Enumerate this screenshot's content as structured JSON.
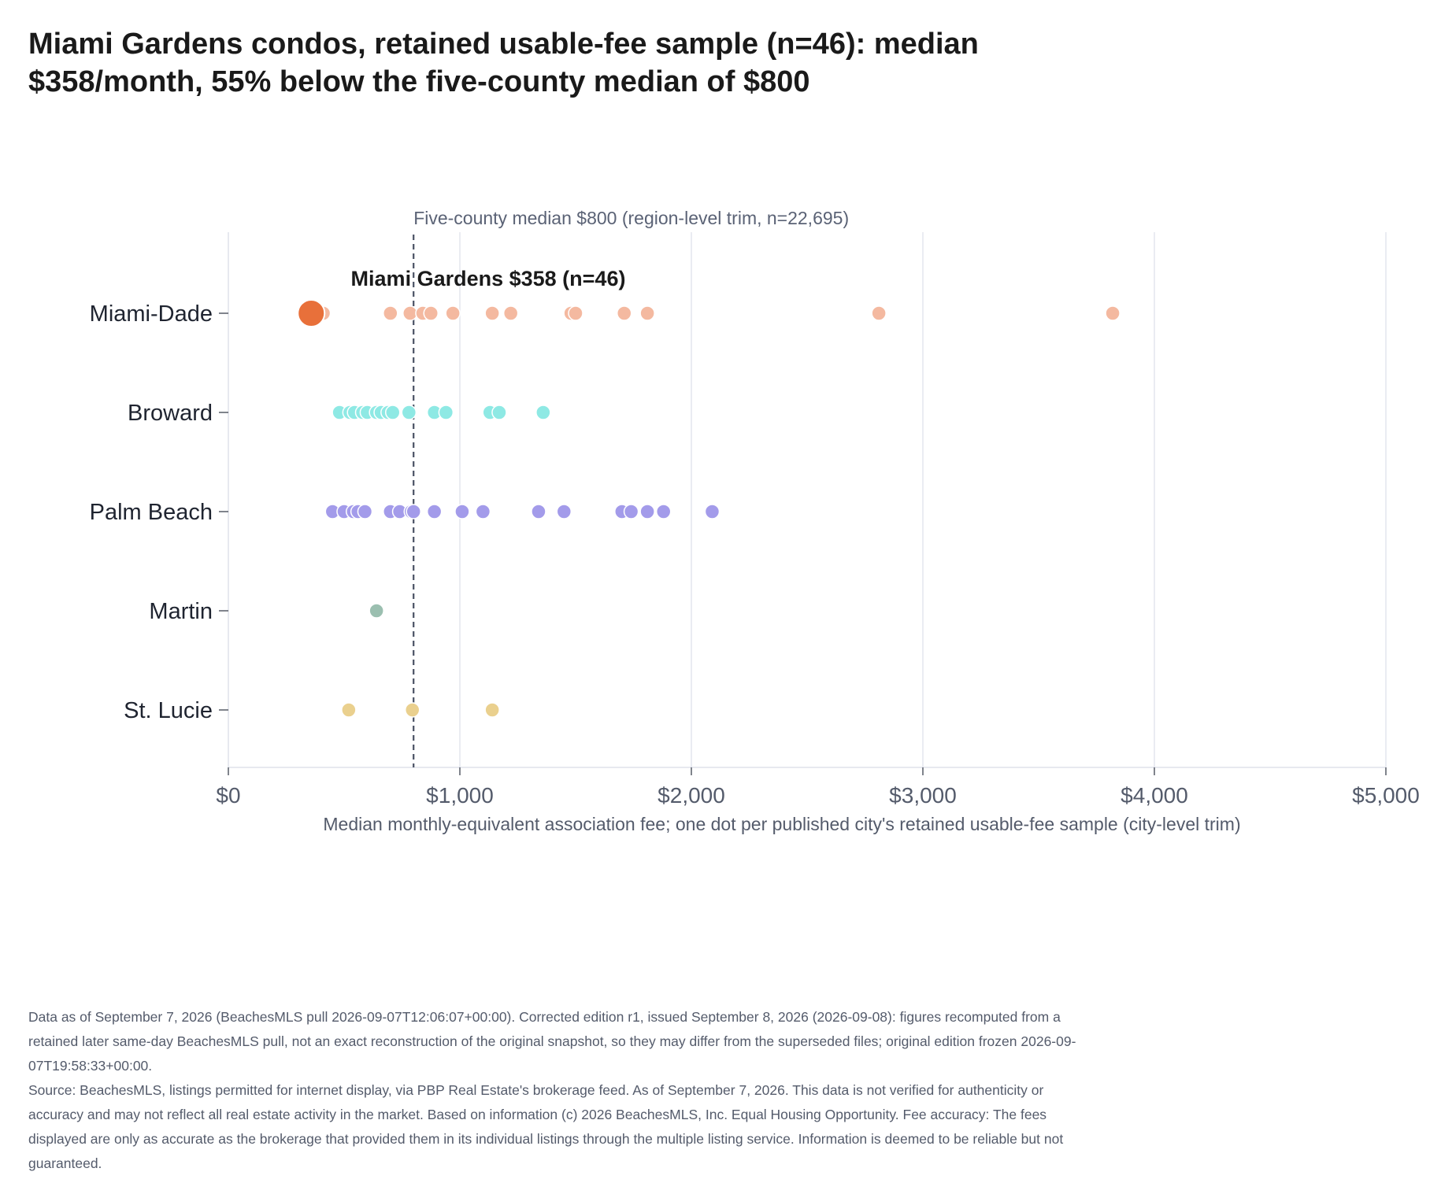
{
  "title": "Miami Gardens condos, retained usable-fee sample (n=46): median $358/month, 55% below the five-county median of $800",
  "footnote": {
    "edition": "Data as of September 7, 2026 (BeachesMLS pull 2026-09-07T12:06:07+00:00). Corrected edition r1, issued September 8, 2026 (2026-09-08): figures recomputed from a retained later same-day BeachesMLS pull, not an exact reconstruction of the original snapshot, so they may differ from the superseded files; original edition frozen 2026-09-07T19:58:33+00:00.",
    "source": "Source: BeachesMLS, listings permitted for internet display, via PBP Real Estate's brokerage feed. As of September 7, 2026. This data is not verified for authenticity or accuracy and may not reflect all real estate activity in the market. Based on information (c) 2026 BeachesMLS, Inc. Equal Housing Opportunity. Fee accuracy: The fees displayed are only as accurate as the brokerage that provided them in its individual listings through the multiple listing service. Information is deemed to be reliable but not guaranteed."
  },
  "chart_data": {
    "type": "scatter",
    "xlabel": "Median monthly-equivalent association fee; one dot per published city's retained usable-fee sample (city-level trim)",
    "xlim": [
      0,
      5000
    ],
    "xticks": [
      {
        "value": 0,
        "label": "$0"
      },
      {
        "value": 1000,
        "label": "$1,000"
      },
      {
        "value": 2000,
        "label": "$2,000"
      },
      {
        "value": 3000,
        "label": "$3,000"
      },
      {
        "value": 4000,
        "label": "$4,000"
      },
      {
        "value": 5000,
        "label": "$5,000"
      }
    ],
    "grid": "vertical",
    "reference_line": {
      "value": 800,
      "label": "Five-county median $800 (region-level trim, n=22,695)"
    },
    "highlight": {
      "county": "Miami-Dade",
      "value": 358,
      "label": "Miami Gardens $358 (n=46)",
      "color": "#e8703a"
    },
    "series": [
      {
        "name": "Miami-Dade",
        "color": "#f4b9a0",
        "values": [
          410,
          700,
          785,
          840,
          875,
          970,
          1140,
          1220,
          1480,
          1500,
          1710,
          1810,
          2810,
          3820
        ]
      },
      {
        "name": "Broward",
        "color": "#8ee9e4",
        "values": [
          480,
          525,
          545,
          580,
          600,
          640,
          660,
          690,
          710,
          780,
          890,
          940,
          1130,
          1170,
          1360
        ]
      },
      {
        "name": "Palm Beach",
        "color": "#a39bea",
        "values": [
          450,
          500,
          540,
          560,
          590,
          700,
          740,
          790,
          800,
          890,
          1010,
          1100,
          1340,
          1450,
          1700,
          1740,
          1810,
          1880,
          2090
        ]
      },
      {
        "name": "Martin",
        "color": "#9bbfb0",
        "values": [
          640
        ]
      },
      {
        "name": "St. Lucie",
        "color": "#ead08e",
        "values": [
          520,
          795,
          1140
        ]
      }
    ]
  }
}
